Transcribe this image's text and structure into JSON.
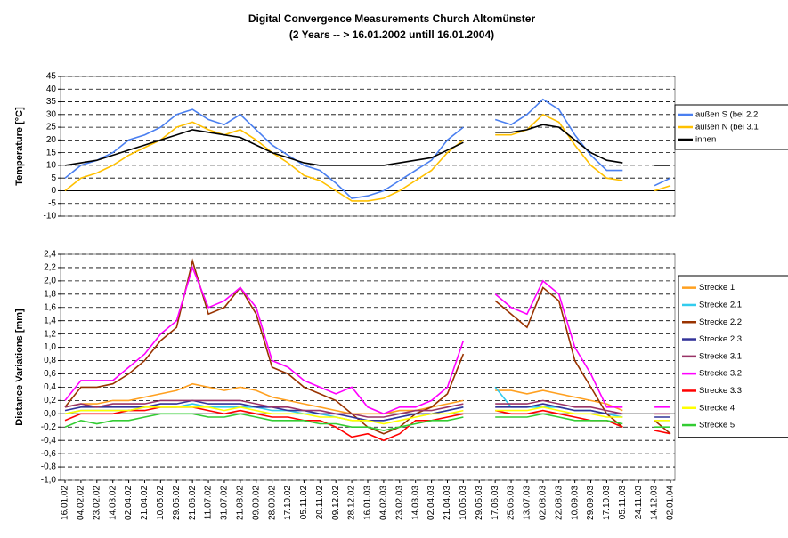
{
  "chart_data": [
    {
      "type": "line",
      "title": "Digital Convergence Measurements Church Altomünster",
      "subtitle": "(2 Years -- > 16.01.2002 untill 16.01.2004)",
      "y_label": "Temperature [°C]",
      "ylim": [
        -10,
        45
      ],
      "yticks": [
        -10,
        -5,
        0,
        5,
        10,
        15,
        20,
        25,
        30,
        35,
        40,
        45
      ],
      "grid": true,
      "legend": "right",
      "series": [
        {
          "name": "außen S (bei 2.2",
          "color": "#4a7ff0",
          "values": [
            5,
            10,
            12,
            15,
            20,
            22,
            25,
            30,
            32,
            28,
            26,
            30,
            24,
            18,
            14,
            10,
            8,
            3,
            -3,
            -2,
            0,
            4,
            8,
            12,
            20,
            25,
            null,
            28,
            26,
            30,
            36,
            32,
            22,
            14,
            8,
            8,
            null,
            2,
            5
          ]
        },
        {
          "name": "außen N (bei 3.1",
          "color": "#ffc000",
          "values": [
            0,
            5,
            7,
            10,
            14,
            17,
            20,
            25,
            27,
            24,
            22,
            24,
            20,
            15,
            11,
            6,
            4,
            0,
            -4,
            -4,
            -3,
            0,
            4,
            8,
            15,
            20,
            null,
            22,
            22,
            24,
            30,
            27,
            18,
            10,
            5,
            4,
            null,
            0,
            2
          ]
        },
        {
          "name": "innen",
          "color": "#000000",
          "values": [
            10,
            11,
            12,
            14,
            16,
            18,
            20,
            22,
            24,
            23,
            22,
            21,
            18,
            15,
            13,
            11,
            10,
            10,
            10,
            10,
            10,
            11,
            12,
            13,
            16,
            19,
            null,
            23,
            23,
            24,
            26,
            25,
            20,
            15,
            12,
            11,
            null,
            10,
            10
          ]
        }
      ]
    },
    {
      "type": "line",
      "y_label": "Distance Variations [mm]",
      "categories": [
        "16.01.02",
        "04.02.02",
        "23.02.02",
        "14.03.02",
        "02.04.02",
        "21.04.02",
        "10.05.02",
        "29.05.02",
        "21.06.02",
        "11.07.02",
        "31.07.02",
        "21.08.02",
        "09.09.02",
        "28.09.02",
        "17.10.02",
        "05.11.02",
        "20.11.02",
        "09.12.02",
        "28.12.02",
        "16.01.03",
        "04.02.03",
        "23.02.03",
        "14.03.03",
        "02.04.03",
        "21.04.03",
        "10.05.03",
        "29.05.03",
        "17.06.03",
        "25.06.03",
        "13.07.03",
        "02.08.03",
        "22.08.03",
        "10.09.03",
        "29.09.03",
        "17.10.03",
        "05.11.03",
        "24.11.03",
        "14.12.03",
        "02.01.04"
      ],
      "ylim": [
        -1.0,
        2.4
      ],
      "yticks": [
        {
          "value": -1.0,
          "label": "-1,0"
        },
        {
          "value": -0.8,
          "label": "-0,8"
        },
        {
          "value": -0.6,
          "label": "-0,6"
        },
        {
          "value": -0.4,
          "label": "-0,4"
        },
        {
          "value": -0.2,
          "label": "-0,2"
        },
        {
          "value": 0,
          "label": "0,0"
        },
        {
          "value": 0.2,
          "label": "0,2"
        },
        {
          "value": 0.4,
          "label": "0,4"
        },
        {
          "value": 0.6,
          "label": "0,6"
        },
        {
          "value": 0.8,
          "label": "0,8"
        },
        {
          "value": 1.0,
          "label": "1,0"
        },
        {
          "value": 1.2,
          "label": "1,2"
        },
        {
          "value": 1.4,
          "label": "1,4"
        },
        {
          "value": 1.6,
          "label": "1,6"
        },
        {
          "value": 1.8,
          "label": "1,8"
        },
        {
          "value": 2.0,
          "label": "2,0"
        },
        {
          "value": 2.2,
          "label": "2,2"
        },
        {
          "value": 2.4,
          "label": "2,4"
        }
      ],
      "grid": true,
      "legend": "right",
      "series": [
        {
          "name": "Strecke 1",
          "color": "#ffa020",
          "values": [
            0.1,
            0.15,
            0.15,
            0.2,
            0.2,
            0.25,
            0.3,
            0.35,
            0.45,
            0.4,
            0.35,
            0.4,
            0.35,
            0.25,
            0.2,
            0.15,
            0.1,
            0.05,
            0.0,
            0.0,
            0.0,
            0.05,
            0.05,
            0.1,
            0.15,
            0.2,
            null,
            0.35,
            0.35,
            0.3,
            0.35,
            0.3,
            0.25,
            0.2,
            0.15,
            0.05,
            null,
            0.0,
            0.0
          ]
        },
        {
          "name": "Strecke 2.1",
          "color": "#33ccee",
          "values": [
            0.0,
            0.05,
            0.05,
            0.05,
            0.05,
            0.1,
            0.1,
            0.1,
            0.15,
            0.1,
            0.1,
            0.1,
            0.1,
            0.05,
            0.05,
            0.0,
            0.0,
            -0.05,
            -0.1,
            -0.1,
            -0.1,
            -0.05,
            0.0,
            0.0,
            0.05,
            0.1,
            null,
            0.4,
            0.1,
            0.1,
            0.1,
            0.1,
            0.05,
            0.05,
            0.0,
            -0.05,
            null,
            -0.1,
            -0.1
          ]
        },
        {
          "name": "Strecke 2.2",
          "color": "#993300",
          "values": [
            0.1,
            0.4,
            0.4,
            0.45,
            0.6,
            0.8,
            1.1,
            1.3,
            2.3,
            1.5,
            1.6,
            1.9,
            1.5,
            0.7,
            0.6,
            0.4,
            0.3,
            0.2,
            0.0,
            -0.2,
            -0.3,
            -0.2,
            0.0,
            0.1,
            0.3,
            0.9,
            null,
            1.7,
            1.5,
            1.3,
            1.9,
            1.7,
            0.8,
            0.4,
            0.0,
            -0.2,
            null,
            -0.1,
            -0.3
          ]
        },
        {
          "name": "Strecke 2.3",
          "color": "#333399",
          "values": [
            0.05,
            0.1,
            0.1,
            0.1,
            0.1,
            0.1,
            0.15,
            0.15,
            0.2,
            0.15,
            0.15,
            0.15,
            0.1,
            0.1,
            0.05,
            0.05,
            0.0,
            0.0,
            -0.05,
            -0.1,
            -0.1,
            -0.05,
            0.0,
            0.0,
            0.05,
            0.1,
            null,
            0.1,
            0.1,
            0.1,
            0.15,
            0.1,
            0.05,
            0.05,
            0.0,
            0.0,
            null,
            -0.05,
            -0.05
          ]
        },
        {
          "name": "Strecke 3.1",
          "color": "#993366",
          "values": [
            0.1,
            0.15,
            0.1,
            0.15,
            0.15,
            0.15,
            0.2,
            0.2,
            0.2,
            0.2,
            0.2,
            0.2,
            0.15,
            0.1,
            0.1,
            0.05,
            0.05,
            0.0,
            0.0,
            -0.05,
            -0.05,
            0.0,
            0.05,
            0.05,
            0.1,
            0.15,
            null,
            0.15,
            0.15,
            0.15,
            0.2,
            0.15,
            0.1,
            0.1,
            0.05,
            0.0,
            null,
            0.0,
            0.0
          ]
        },
        {
          "name": "Strecke 3.2",
          "color": "#ff00ff",
          "values": [
            0.2,
            0.5,
            0.5,
            0.5,
            0.7,
            0.9,
            1.2,
            1.4,
            2.2,
            1.6,
            1.7,
            1.9,
            1.6,
            0.8,
            0.7,
            0.5,
            0.4,
            0.3,
            0.4,
            0.1,
            0.0,
            0.1,
            0.1,
            0.2,
            0.4,
            1.1,
            null,
            1.8,
            1.6,
            1.5,
            2.0,
            1.8,
            1.0,
            0.6,
            0.1,
            0.1,
            null,
            0.1,
            0.1
          ]
        },
        {
          "name": "Strecke 3.3",
          "color": "#ff0000",
          "values": [
            -0.1,
            0.0,
            0.0,
            0.0,
            0.05,
            0.05,
            0.1,
            0.1,
            0.1,
            0.05,
            0.0,
            0.05,
            0.0,
            -0.05,
            -0.05,
            -0.1,
            -0.1,
            -0.2,
            -0.35,
            -0.3,
            -0.4,
            -0.3,
            -0.1,
            -0.1,
            -0.05,
            0.0,
            null,
            0.05,
            0.0,
            0.0,
            0.05,
            0.0,
            -0.05,
            -0.1,
            -0.1,
            -0.2,
            null,
            -0.25,
            -0.3
          ]
        },
        {
          "name": "Strecke 4",
          "color": "#ffff00",
          "values": [
            0.0,
            0.05,
            0.05,
            0.05,
            0.05,
            0.1,
            0.1,
            0.1,
            0.1,
            0.1,
            0.05,
            0.1,
            0.05,
            0.0,
            0.0,
            0.0,
            -0.05,
            -0.05,
            -0.1,
            -0.1,
            -0.15,
            -0.1,
            -0.05,
            0.0,
            0.0,
            0.05,
            null,
            0.05,
            0.05,
            0.05,
            0.1,
            0.05,
            0.0,
            0.0,
            -0.05,
            -0.05,
            null,
            -0.1,
            -0.1
          ]
        },
        {
          "name": "Strecke 5",
          "color": "#33cc33",
          "values": [
            -0.2,
            -0.1,
            -0.15,
            -0.1,
            -0.1,
            -0.05,
            0.0,
            0.0,
            0.0,
            -0.05,
            -0.05,
            0.0,
            -0.05,
            -0.1,
            -0.1,
            -0.1,
            -0.15,
            -0.15,
            -0.2,
            -0.2,
            -0.25,
            -0.2,
            -0.15,
            -0.1,
            -0.1,
            -0.05,
            null,
            -0.05,
            -0.05,
            -0.05,
            0.0,
            -0.05,
            -0.1,
            -0.1,
            -0.1,
            -0.15,
            null,
            -0.2,
            -0.2
          ]
        }
      ]
    }
  ]
}
